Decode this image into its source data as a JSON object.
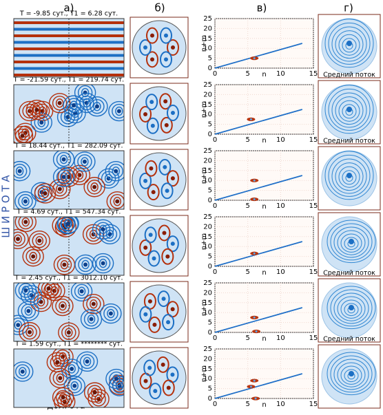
{
  "headers": [
    "а)",
    "б)",
    "в)",
    "г)"
  ],
  "row_labels": [
    "T =  -9.85 сут., T1 =   6.28 сут.",
    "T = -21.59 сут., T1 = 219.74 сут.",
    "T = 18.44 сут., T1 = 282.09 сут.",
    "T =   4.69 сут., T1 = 547.34 сут.",
    "T =   2.45 сут., T1 = 3012.10 сут.",
    "T =   1.59 сут., T1 = ******** сут."
  ],
  "latitude_label": "Ш И Р О Т А",
  "longitude_label": "долгота",
  "mean_flow_labels": [
    "Средний поток",
    "Средний поток",
    null,
    "Средний поток",
    "Средний поток",
    null
  ],
  "chart_data": [
    {
      "type": "line",
      "xlabel": "n",
      "ylabel": "n+m",
      "xlim": [
        0,
        15
      ],
      "ylim": [
        0,
        25
      ],
      "xticks": [
        0,
        5,
        10,
        15
      ],
      "yticks": [
        0,
        5,
        10,
        15,
        20,
        25
      ],
      "grid": true,
      "series": [
        {
          "color": "#1f6fc8",
          "x": [
            0,
            13.3
          ],
          "y": [
            0,
            12.5
          ]
        },
        {
          "color": "#b8350f",
          "mode": "markers",
          "x": [
            6
          ],
          "y": [
            5
          ]
        }
      ]
    },
    {
      "type": "line",
      "xlabel": "n",
      "ylabel": "n+m",
      "xlim": [
        0,
        15
      ],
      "ylim": [
        0,
        25
      ],
      "xticks": [
        0,
        5,
        10,
        15
      ],
      "yticks": [
        0,
        5,
        10,
        15,
        20,
        25
      ],
      "grid": true,
      "series": [
        {
          "color": "#1f6fc8",
          "x": [
            0,
            13.3
          ],
          "y": [
            0,
            12.5
          ]
        },
        {
          "color": "#b8350f",
          "mode": "markers",
          "x": [
            5.5
          ],
          "y": [
            7.5
          ]
        }
      ]
    },
    {
      "type": "line",
      "xlabel": "n",
      "ylabel": "n+m",
      "xlim": [
        0,
        15
      ],
      "ylim": [
        0,
        25
      ],
      "xticks": [
        0,
        5,
        10,
        15
      ],
      "yticks": [
        0,
        5,
        10,
        15,
        20,
        25
      ],
      "grid": true,
      "series": [
        {
          "color": "#1f6fc8",
          "x": [
            0,
            13.3
          ],
          "y": [
            0,
            12.5
          ]
        },
        {
          "color": "#b8350f",
          "mode": "markers",
          "x": [
            6,
            6
          ],
          "y": [
            10,
            0.5
          ]
        }
      ]
    },
    {
      "type": "line",
      "xlabel": "n",
      "ylabel": "n+m",
      "xlim": [
        0,
        15
      ],
      "ylim": [
        0,
        25
      ],
      "xticks": [
        0,
        5,
        10,
        15
      ],
      "yticks": [
        0,
        5,
        10,
        15,
        20,
        25
      ],
      "grid": true,
      "series": [
        {
          "color": "#1f6fc8",
          "x": [
            0,
            13.3
          ],
          "y": [
            0,
            12.5
          ]
        },
        {
          "color": "#b8350f",
          "mode": "markers",
          "x": [
            6
          ],
          "y": [
            6.5
          ]
        }
      ]
    },
    {
      "type": "line",
      "xlabel": "n",
      "ylabel": "n+m",
      "xlim": [
        0,
        15
      ],
      "ylim": [
        0,
        25
      ],
      "xticks": [
        0,
        5,
        10,
        15
      ],
      "yticks": [
        0,
        5,
        10,
        15,
        20,
        25
      ],
      "grid": true,
      "series": [
        {
          "color": "#1f6fc8",
          "x": [
            0,
            13.3
          ],
          "y": [
            0,
            12.5
          ]
        },
        {
          "color": "#b8350f",
          "mode": "markers",
          "x": [
            6,
            6.3
          ],
          "y": [
            7.5,
            0.5
          ]
        }
      ]
    },
    {
      "type": "line",
      "xlabel": "n",
      "ylabel": "n+m",
      "xlim": [
        0,
        15
      ],
      "ylim": [
        0,
        25
      ],
      "xticks": [
        0,
        5,
        10,
        15
      ],
      "yticks": [
        0,
        5,
        10,
        15,
        20,
        25
      ],
      "grid": true,
      "series": [
        {
          "color": "#1f6fc8",
          "x": [
            0,
            13.3
          ],
          "y": [
            0,
            12.5
          ]
        },
        {
          "color": "#b8350f",
          "mode": "markers",
          "x": [
            6,
            5.5,
            6.2
          ],
          "y": [
            9,
            6,
            0
          ]
        }
      ]
    }
  ]
}
